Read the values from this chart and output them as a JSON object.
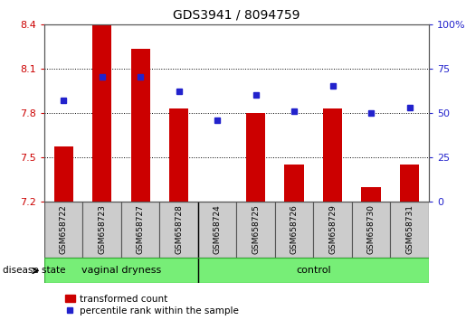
{
  "title": "GDS3941 / 8094759",
  "samples": [
    "GSM658722",
    "GSM658723",
    "GSM658727",
    "GSM658728",
    "GSM658724",
    "GSM658725",
    "GSM658726",
    "GSM658729",
    "GSM658730",
    "GSM658731"
  ],
  "transformed_count": [
    7.57,
    8.39,
    8.23,
    7.83,
    7.2,
    7.8,
    7.45,
    7.83,
    7.3,
    7.45
  ],
  "percentile_rank": [
    57,
    70,
    70,
    62,
    46,
    60,
    51,
    65,
    50,
    53
  ],
  "ylim_left": [
    7.2,
    8.4
  ],
  "ylim_right": [
    0,
    100
  ],
  "yticks_left": [
    7.2,
    7.5,
    7.8,
    8.1,
    8.4
  ],
  "yticks_right": [
    0,
    25,
    50,
    75,
    100
  ],
  "ytick_labels_right": [
    "0",
    "25",
    "50",
    "75",
    "100%"
  ],
  "bar_color": "#cc0000",
  "dot_color": "#2222cc",
  "bar_bottom": 7.2,
  "groups": [
    {
      "label": "vaginal dryness",
      "start": 0,
      "end": 4
    },
    {
      "label": "control",
      "start": 4,
      "end": 10
    }
  ],
  "group_label_prefix": "disease state",
  "legend_bar_label": "transformed count",
  "legend_dot_label": "percentile rank within the sample",
  "left_axis_color": "#cc0000",
  "right_axis_color": "#2222cc",
  "group_divider": 3.5,
  "label_bg_color": "#cccccc",
  "label_border_color": "#555555",
  "group_fill_color": "#77ee77",
  "group_border_color": "#33aa33"
}
